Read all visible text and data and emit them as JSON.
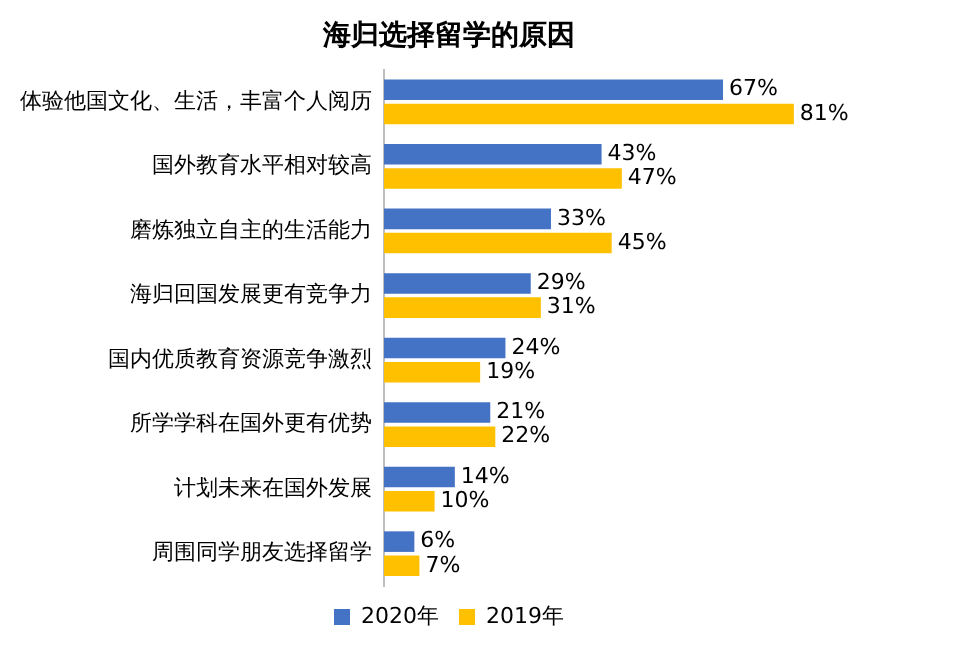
{
  "chart_data": {
    "type": "bar",
    "orientation": "horizontal",
    "title": "海归选择留学的原因",
    "categories": [
      "体验他国文化、生活，丰富个人阅历",
      "国外教育水平相对较高",
      "磨炼独立自主的生活能力",
      "海归回国发展更有竞争力",
      "国内优质教育资源竞争激烈",
      "所学学科在国外更有优势",
      "计划未来在国外发展",
      "周围同学朋友选择留学"
    ],
    "series": [
      {
        "name": "2020年",
        "color": "#4472c4",
        "values": [
          67,
          43,
          33,
          29,
          24,
          21,
          14,
          6
        ],
        "value_labels": [
          "67%",
          "43%",
          "33%",
          "29%",
          "24%",
          "21%",
          "14%",
          "6%"
        ]
      },
      {
        "name": "2019年",
        "color": "#ffc000",
        "values": [
          81,
          47,
          45,
          31,
          19,
          22,
          10,
          7
        ],
        "value_labels": [
          "81%",
          "47%",
          "45%",
          "31%",
          "19%",
          "22%",
          "10%",
          "7%"
        ]
      }
    ],
    "legend": "bottom"
  }
}
